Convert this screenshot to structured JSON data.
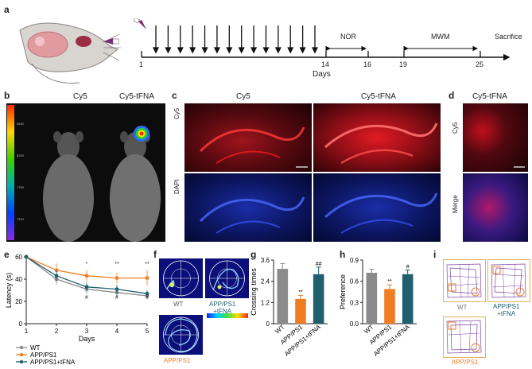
{
  "panels": {
    "a": {
      "label": "a",
      "timeline": {
        "start_day": "1",
        "days": [
          "14",
          "16",
          "19",
          "25"
        ],
        "axis_label": "Days",
        "nor": "NOR",
        "mwm": "MWM",
        "sacrifice": "Sacrifice"
      }
    },
    "b": {
      "label": "b",
      "left": "Cy5",
      "right": "Cy5-tFNA",
      "scale": [
        "8840",
        "8200",
        "7760",
        "7320",
        "6880"
      ]
    },
    "c": {
      "label": "c",
      "col1": "Cy5",
      "col2": "Cy5-tFNA",
      "row1": "Cy5",
      "row2": "DAPI"
    },
    "d": {
      "label": "d",
      "col": "Cy5-tFNA",
      "row1": "Cy5",
      "row2": "Merge"
    },
    "e": {
      "label": "e"
    },
    "f": {
      "label": "f",
      "wt": "WT",
      "tfna": "APP/PS1\n+tFNA",
      "app": "APP/PS1"
    },
    "g": {
      "label": "g"
    },
    "h": {
      "label": "h"
    },
    "i": {
      "label": "i",
      "wt": "WT",
      "tfna": "APP/PS1\n+tFNA",
      "app": "APP/PS1"
    }
  },
  "chart_data": [
    {
      "type": "line",
      "panel": "e",
      "xlabel": "Days",
      "ylabel": "Latency (s)",
      "x": [
        1,
        2,
        3,
        4,
        5
      ],
      "ylim": [
        0,
        60
      ],
      "yticks": [
        0,
        20,
        40,
        60
      ],
      "series": [
        {
          "name": "WT",
          "color": "#8a8a8a",
          "values": [
            60,
            40,
            31,
            28,
            25
          ],
          "err": [
            2,
            5,
            4,
            4,
            3
          ]
        },
        {
          "name": "APP/PS1",
          "color": "#f07d22",
          "values": [
            60,
            48,
            43,
            41,
            41
          ],
          "err": [
            2,
            6,
            5,
            5,
            7
          ]
        },
        {
          "name": "APP/PS1+tFNA",
          "color": "#1f5f6e",
          "values": [
            60,
            43,
            33,
            31,
            27
          ],
          "err": [
            2,
            5,
            4,
            4,
            3
          ]
        }
      ],
      "annotations": [
        {
          "x": 3,
          "text": "*"
        },
        {
          "x": 3,
          "text": "#"
        },
        {
          "x": 4,
          "text": "**"
        },
        {
          "x": 4,
          "text": "#"
        },
        {
          "x": 5,
          "text": "**"
        },
        {
          "x": 5,
          "text": "#"
        }
      ]
    },
    {
      "type": "bar",
      "panel": "g",
      "ylabel": "Crossing times",
      "categories": [
        "WT",
        "APP/PS1",
        "APP/PS1+tFNA"
      ],
      "values": [
        3.1,
        1.4,
        2.8
      ],
      "err": [
        0.3,
        0.2,
        0.4
      ],
      "colors": [
        "#8a8a8a",
        "#f07d22",
        "#1f5f6e"
      ],
      "ylim": [
        0,
        3.6
      ],
      "yticks": [
        "0",
        "1.2",
        "2.4",
        "3.6"
      ],
      "sig": [
        "",
        "**",
        "##"
      ]
    },
    {
      "type": "bar",
      "panel": "h",
      "ylabel": "Preference",
      "categories": [
        "WT",
        "APP/PS1",
        "APP/PS1+tFNA"
      ],
      "values": [
        0.72,
        0.49,
        0.7
      ],
      "err": [
        0.05,
        0.06,
        0.06
      ],
      "colors": [
        "#8a8a8a",
        "#f07d22",
        "#1f5f6e"
      ],
      "ylim": [
        0,
        0.9
      ],
      "yticks": [
        "0.0",
        "0.3",
        "0.6",
        "0.9"
      ],
      "sig": [
        "",
        "**",
        "#"
      ]
    }
  ]
}
